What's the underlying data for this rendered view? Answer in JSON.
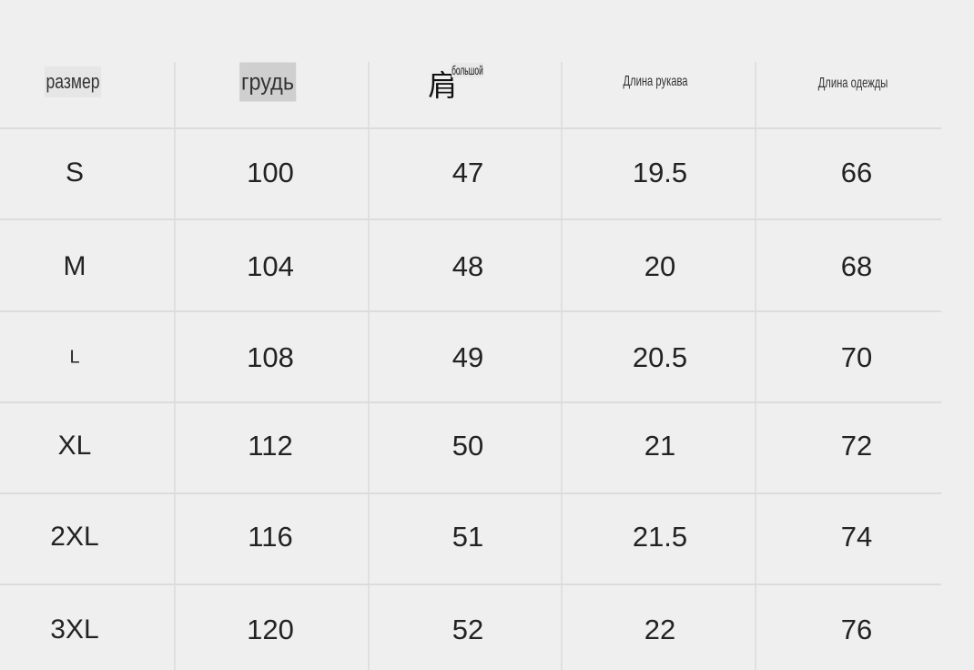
{
  "table": {
    "headers": [
      "размер",
      "грудь",
      "肩",
      "Длина рукава",
      "Длина одежды"
    ],
    "header_overlay": "большой",
    "rows": [
      [
        "S",
        "100",
        "47",
        "19.5",
        "66"
      ],
      [
        "M",
        "104",
        "48",
        "20",
        "68"
      ],
      [
        "L",
        "108",
        "49",
        "20.5",
        "70"
      ],
      [
        "XL",
        "112",
        "50",
        "21",
        "72"
      ],
      [
        "2XL",
        "116",
        "51",
        "21.5",
        "74"
      ],
      [
        "3XL",
        "120",
        "52",
        "22",
        "76"
      ]
    ]
  },
  "colors": {
    "background": "#efefef",
    "grid": "#dcdcdc",
    "text": "#222222"
  }
}
